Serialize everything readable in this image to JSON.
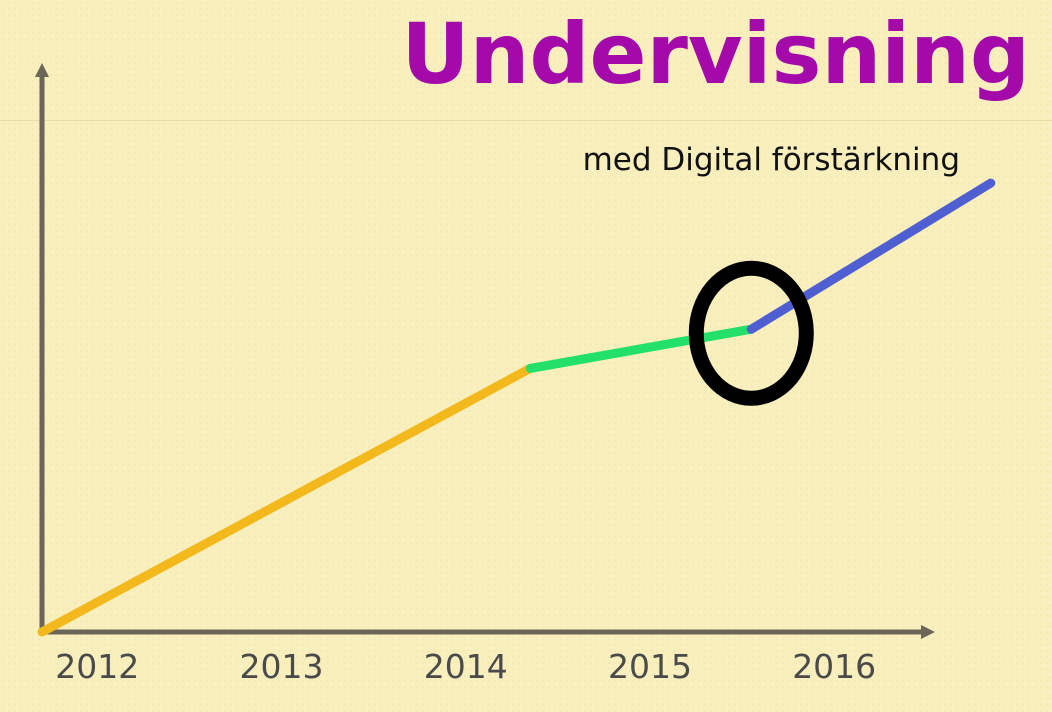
{
  "chart_data": {
    "type": "line",
    "title": "Undervisning",
    "subtitle": "med Digital förstärkning",
    "xlabel": "",
    "ylabel": "",
    "categories": [
      "2012",
      "2013",
      "2014",
      "2015",
      "2016"
    ],
    "xlim": [
      2011.7,
      2016.9
    ],
    "ylim": [
      0,
      100
    ],
    "grid": false,
    "segments": [
      {
        "color": "#f2b81c",
        "points": [
          [
            2011.7,
            0
          ],
          [
            2014.35,
            50.5
          ]
        ]
      },
      {
        "color": "#22e06a",
        "points": [
          [
            2014.35,
            50.5
          ],
          [
            2015.55,
            58
          ]
        ]
      },
      {
        "color": "#4f5fd2",
        "points": [
          [
            2015.55,
            58
          ],
          [
            2016.85,
            86
          ]
        ]
      }
    ],
    "annotation": {
      "shape": "circle",
      "x": 2015.55,
      "y": 58,
      "color": "#000000"
    }
  }
}
